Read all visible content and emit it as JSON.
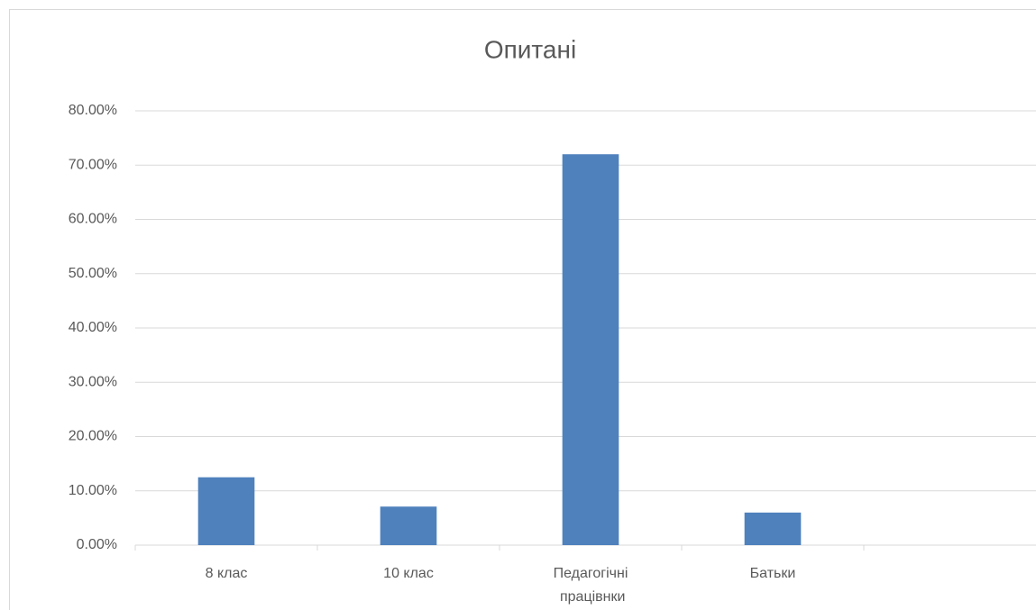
{
  "chart_data": {
    "type": "bar",
    "title": "Опитані",
    "categories": [
      "8 клас",
      "10 клас",
      "Педагогічні працівнки",
      "Батьки",
      null
    ],
    "values": [
      12.5,
      7.1,
      72.0,
      6.0,
      null
    ],
    "color": "#4f81bd",
    "ylim": [
      0,
      80
    ],
    "yticks": [
      {
        "value": 0,
        "label": "0.00%"
      },
      {
        "value": 10,
        "label": "10.00%"
      },
      {
        "value": 20,
        "label": "20.00%"
      },
      {
        "value": 30,
        "label": "30.00%"
      },
      {
        "value": 40,
        "label": "40.00%"
      },
      {
        "value": 50,
        "label": "50.00%"
      },
      {
        "value": 60,
        "label": "60.00%"
      },
      {
        "value": 70,
        "label": "70.00%"
      },
      {
        "value": 80,
        "label": "80.00%"
      }
    ],
    "grid": true
  }
}
